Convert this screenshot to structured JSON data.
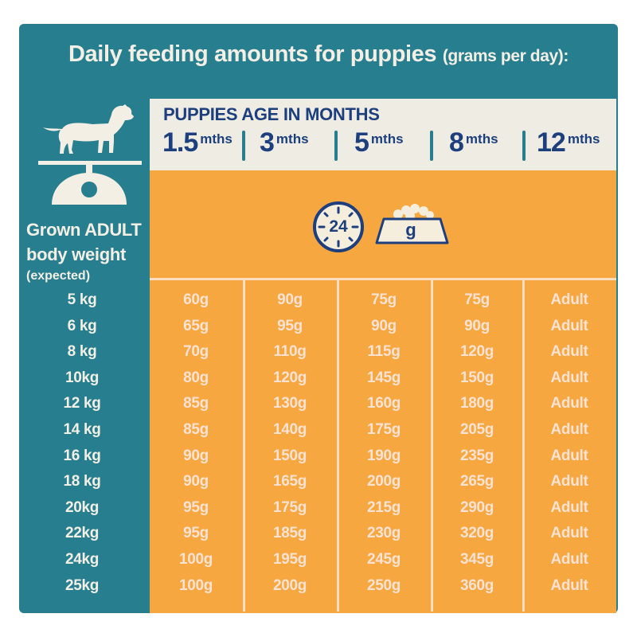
{
  "title": {
    "main": "Daily feeding amounts for puppies",
    "sub": "(grams per day):"
  },
  "header": {
    "age_title": "PUPPIES AGE IN MONTHS",
    "months": [
      {
        "num": "1.5",
        "unit": "mths"
      },
      {
        "num": "3",
        "unit": "mths"
      },
      {
        "num": "5",
        "unit": "mths"
      },
      {
        "num": "8",
        "unit": "mths"
      },
      {
        "num": "12",
        "unit": "mths"
      }
    ]
  },
  "icons": {
    "clock_number": "24",
    "bowl_unit": "g",
    "dog": "dog-icon",
    "scale": "scale-icon",
    "clock": "clock-icon",
    "bowl": "food-bowl-icon"
  },
  "left": {
    "line1": "Grown ADULT",
    "line2": "body weight",
    "line3": "(expected)"
  },
  "rows": [
    {
      "weight": "5 kg",
      "values": [
        "60g",
        "90g",
        "75g",
        "75g",
        "Adult"
      ]
    },
    {
      "weight": "6 kg",
      "values": [
        "65g",
        "95g",
        "90g",
        "90g",
        "Adult"
      ]
    },
    {
      "weight": "8 kg",
      "values": [
        "70g",
        "110g",
        "115g",
        "120g",
        "Adult"
      ]
    },
    {
      "weight": "10kg",
      "values": [
        "80g",
        "120g",
        "145g",
        "150g",
        "Adult"
      ]
    },
    {
      "weight": "12 kg",
      "values": [
        "85g",
        "130g",
        "160g",
        "180g",
        "Adult"
      ]
    },
    {
      "weight": "14 kg",
      "values": [
        "85g",
        "140g",
        "175g",
        "205g",
        "Adult"
      ]
    },
    {
      "weight": "16 kg",
      "values": [
        "90g",
        "150g",
        "190g",
        "235g",
        "Adult"
      ]
    },
    {
      "weight": "18 kg",
      "values": [
        "90g",
        "165g",
        "200g",
        "265g",
        "Adult"
      ]
    },
    {
      "weight": "20kg",
      "values": [
        "95g",
        "175g",
        "215g",
        "290g",
        "Adult"
      ]
    },
    {
      "weight": "22kg",
      "values": [
        "95g",
        "185g",
        "230g",
        "320g",
        "Adult"
      ]
    },
    {
      "weight": "24kg",
      "values": [
        "100g",
        "195g",
        "245g",
        "345g",
        "Adult"
      ]
    },
    {
      "weight": "25kg",
      "values": [
        "100g",
        "200g",
        "250g",
        "360g",
        "Adult"
      ]
    }
  ],
  "colors": {
    "teal": "#277e8f",
    "cream": "#efece4",
    "orange": "#f7a73f",
    "navy": "#1d3f7d",
    "cell_text": "#fbe2d3"
  }
}
